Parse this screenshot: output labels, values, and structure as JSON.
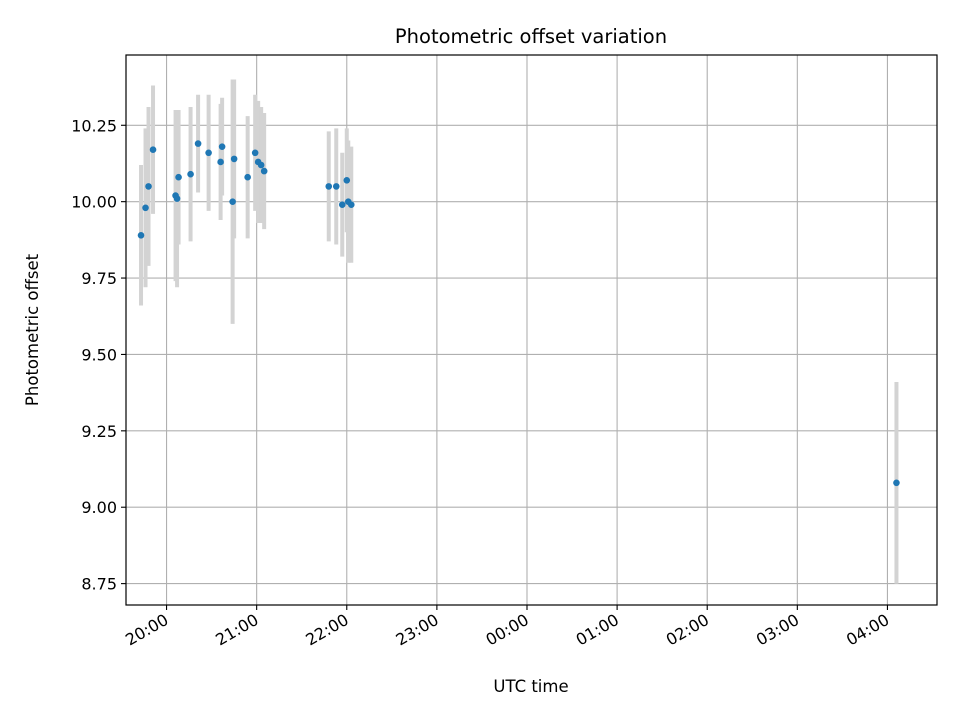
{
  "chart_data": {
    "type": "scatter",
    "title": "Photometric offset variation",
    "xlabel": "UTC time",
    "ylabel": "Photometric offset",
    "grid": true,
    "legend": "none",
    "x_axis": "time",
    "xlim": [
      "19:33",
      "04:33"
    ],
    "ylim": [
      8.68,
      10.48
    ],
    "x_ticks": [
      "20:00",
      "21:00",
      "22:00",
      "23:00",
      "00:00",
      "01:00",
      "02:00",
      "03:00",
      "04:00"
    ],
    "y_ticks": [
      "8.75",
      "9.00",
      "9.25",
      "9.50",
      "9.75",
      "10.00",
      "10.25"
    ],
    "colors": {
      "points": "#1f77b4",
      "errorbars": "#d3d3d3",
      "grid": "#b0b0b0"
    },
    "points": [
      {
        "x": "19:43",
        "y": 9.89,
        "yerr": 0.23
      },
      {
        "x": "19:46",
        "y": 9.98,
        "yerr": 0.26
      },
      {
        "x": "19:48",
        "y": 10.05,
        "yerr": 0.26
      },
      {
        "x": "19:51",
        "y": 10.17,
        "yerr": 0.21
      },
      {
        "x": "20:06",
        "y": 10.02,
        "yerr": 0.28
      },
      {
        "x": "20:07",
        "y": 10.01,
        "yerr": 0.29
      },
      {
        "x": "20:08",
        "y": 10.08,
        "yerr": 0.22
      },
      {
        "x": "20:16",
        "y": 10.09,
        "yerr": 0.22
      },
      {
        "x": "20:21",
        "y": 10.19,
        "yerr": 0.16
      },
      {
        "x": "20:28",
        "y": 10.16,
        "yerr": 0.19
      },
      {
        "x": "20:36",
        "y": 10.13,
        "yerr": 0.19
      },
      {
        "x": "20:37",
        "y": 10.18,
        "yerr": 0.16
      },
      {
        "x": "20:44",
        "y": 10.0,
        "yerr": 0.4
      },
      {
        "x": "20:45",
        "y": 10.14,
        "yerr": 0.26
      },
      {
        "x": "20:54",
        "y": 10.08,
        "yerr": 0.2
      },
      {
        "x": "20:59",
        "y": 10.16,
        "yerr": 0.19
      },
      {
        "x": "21:01",
        "y": 10.13,
        "yerr": 0.2
      },
      {
        "x": "21:03",
        "y": 10.12,
        "yerr": 0.19
      },
      {
        "x": "21:05",
        "y": 10.1,
        "yerr": 0.19
      },
      {
        "x": "21:48",
        "y": 10.05,
        "yerr": 0.18
      },
      {
        "x": "21:53",
        "y": 10.05,
        "yerr": 0.19
      },
      {
        "x": "21:57",
        "y": 9.99,
        "yerr": 0.17
      },
      {
        "x": "22:00",
        "y": 10.07,
        "yerr": 0.17
      },
      {
        "x": "22:01",
        "y": 10.0,
        "yerr": 0.2
      },
      {
        "x": "22:03",
        "y": 9.99,
        "yerr": 0.19
      },
      {
        "x": "04:06",
        "y": 9.08,
        "yerr": 0.33
      }
    ]
  }
}
